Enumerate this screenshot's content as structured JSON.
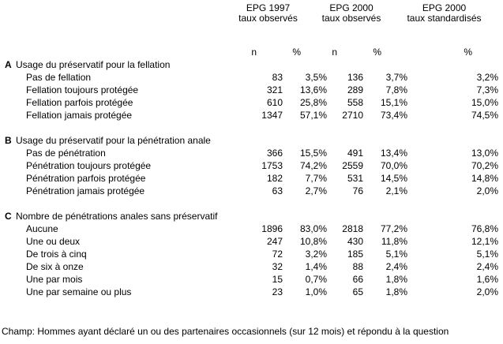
{
  "table": {
    "col_groups": [
      {
        "line1": "EPG 1997",
        "line2": "taux observés"
      },
      {
        "line1": "EPG 2000",
        "line2": "taux observés"
      },
      {
        "line1": "EPG 2000",
        "line2": "taux standardisés"
      }
    ],
    "subheaders": {
      "n1": "n",
      "p1": "%",
      "n2": "n",
      "p2": "%",
      "p3": "%"
    },
    "sections": [
      {
        "letter": "A",
        "title": "Usage du préservatif pour la fellation",
        "rows": [
          {
            "label": "Pas de fellation",
            "n1": "83",
            "p1": "3,5%",
            "n2": "136",
            "p2": "3,7%",
            "p3": "3,2%"
          },
          {
            "label": "Fellation toujours protégée",
            "n1": "321",
            "p1": "13,6%",
            "n2": "289",
            "p2": "7,8%",
            "p3": "7,3%"
          },
          {
            "label": "Fellation parfois protégée",
            "n1": "610",
            "p1": "25,8%",
            "n2": "558",
            "p2": "15,1%",
            "p3": "15,0%"
          },
          {
            "label": "Fellation jamais protégée",
            "n1": "1347",
            "p1": "57,1%",
            "n2": "2710",
            "p2": "73,4%",
            "p3": "74,5%"
          }
        ]
      },
      {
        "letter": "B",
        "title": "Usage du préservatif pour la pénétration anale",
        "rows": [
          {
            "label": "Pas de pénétration",
            "n1": "366",
            "p1": "15,5%",
            "n2": "491",
            "p2": "13,4%",
            "p3": "13,0%"
          },
          {
            "label": "Pénétration toujours protégée",
            "n1": "1753",
            "p1": "74,2%",
            "n2": "2559",
            "p2": "70,0%",
            "p3": "70,2%"
          },
          {
            "label": "Pénétration parfois protégée",
            "n1": "182",
            "p1": "7,7%",
            "n2": "531",
            "p2": "14,5%",
            "p3": "14,8%"
          },
          {
            "label": "Pénétration jamais protégée",
            "n1": "63",
            "p1": "2,7%",
            "n2": "76",
            "p2": "2,1%",
            "p3": "2,0%"
          }
        ]
      },
      {
        "letter": "C",
        "title": "Nombre de pénétrations anales sans préservatif",
        "rows": [
          {
            "label": "Aucune",
            "n1": "1896",
            "p1": "83,0%",
            "n2": "2818",
            "p2": "77,2%",
            "p3": "76,8%"
          },
          {
            "label": "Une ou deux",
            "n1": "247",
            "p1": "10,8%",
            "n2": "430",
            "p2": "11,8%",
            "p3": "12,1%"
          },
          {
            "label": "De trois à cinq",
            "n1": "72",
            "p1": "3,2%",
            "n2": "185",
            "p2": "5,1%",
            "p3": "5,1%"
          },
          {
            "label": "De six à onze",
            "n1": "32",
            "p1": "1,4%",
            "n2": "88",
            "p2": "2,4%",
            "p3": "2,4%"
          },
          {
            "label": "Une par mois",
            "n1": "15",
            "p1": "0,7%",
            "n2": "66",
            "p2": "1,8%",
            "p3": "1,6%"
          },
          {
            "label": "Une par semaine ou plus",
            "n1": "23",
            "p1": "1,0%",
            "n2": "65",
            "p2": "1,8%",
            "p3": "2,0%"
          }
        ]
      }
    ],
    "footnote": "Champ: Hommes ayant déclaré un ou des partenaires occasionnels (sur 12 mois) et répondu à la question"
  }
}
